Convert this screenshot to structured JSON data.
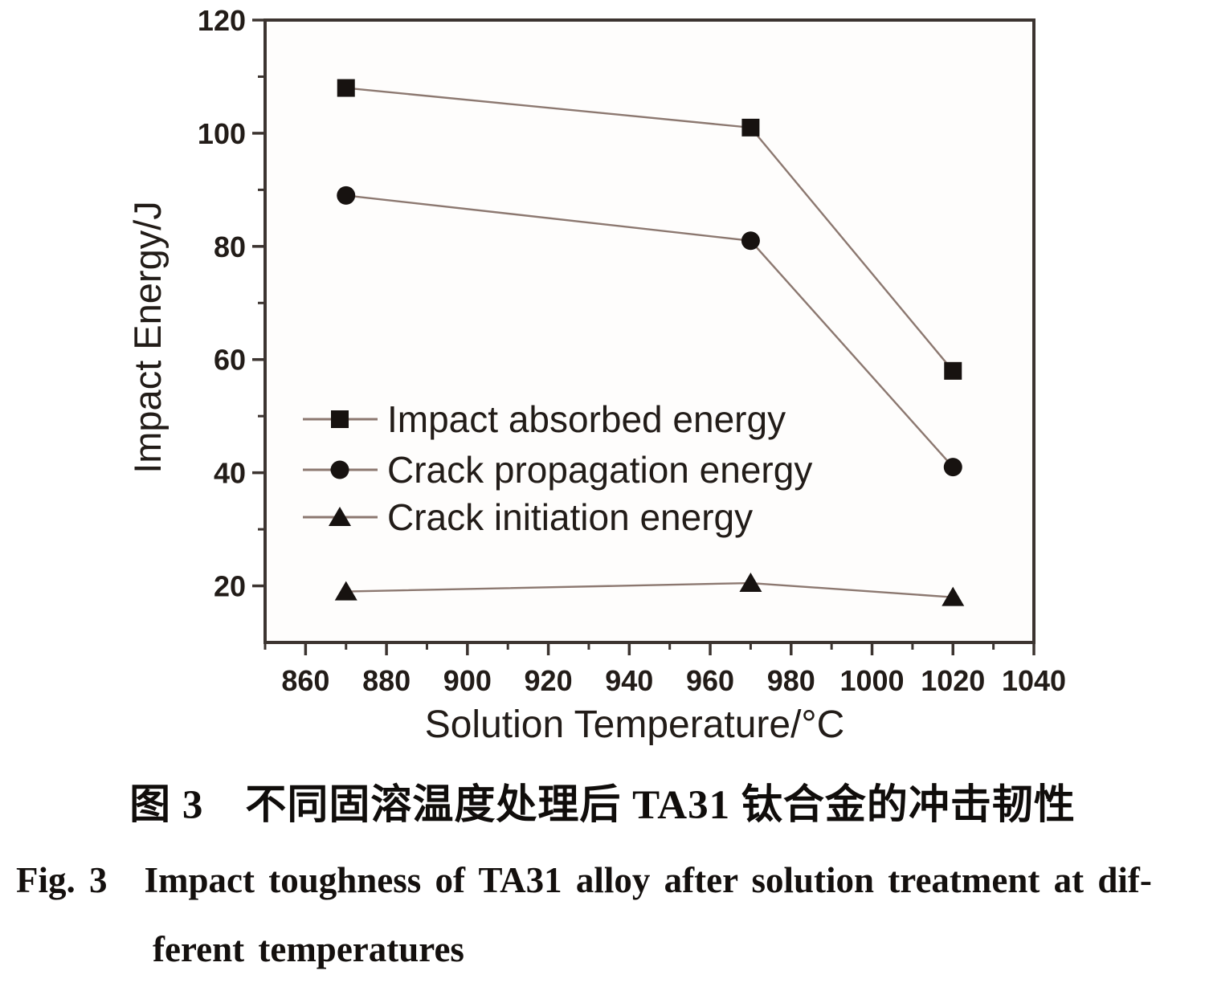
{
  "captions": {
    "zh": "图 3　不同固溶温度处理后 TA31 钛合金的冲击韧性",
    "en_fig_label": "Fig. 3",
    "en_line1": "Impact toughness of TA31 alloy after solution treatment at dif-",
    "en_line2": "ferent temperatures"
  },
  "chart_data": {
    "type": "line",
    "title": "",
    "xlabel": "Solution Temperature/°C",
    "ylabel": "Impact Energy/J",
    "xlim": [
      850,
      1040
    ],
    "ylim": [
      10,
      120
    ],
    "x": [
      870,
      970,
      1020
    ],
    "series": [
      {
        "name": "Impact absorbed energy",
        "marker": "square",
        "values": [
          108,
          101,
          58
        ]
      },
      {
        "name": "Crack propagation energy",
        "marker": "circle",
        "values": [
          89,
          81,
          41
        ]
      },
      {
        "name": "Crack initiation energy",
        "marker": "triangle",
        "values": [
          19,
          20.5,
          18
        ]
      }
    ],
    "x_major_ticks": [
      860,
      880,
      900,
      920,
      940,
      960,
      980,
      1000,
      1020,
      1040
    ],
    "y_major_ticks": [
      20,
      40,
      60,
      80,
      100,
      120
    ],
    "x_minor_step": 10,
    "y_minor_step": 10,
    "grid": false,
    "legend_position": "inside-left",
    "colors": {
      "line": "#8c7870",
      "marker": "#171210",
      "axis": "#3c3430",
      "text": "#221c18",
      "plot_background": "#fefdfc"
    }
  }
}
